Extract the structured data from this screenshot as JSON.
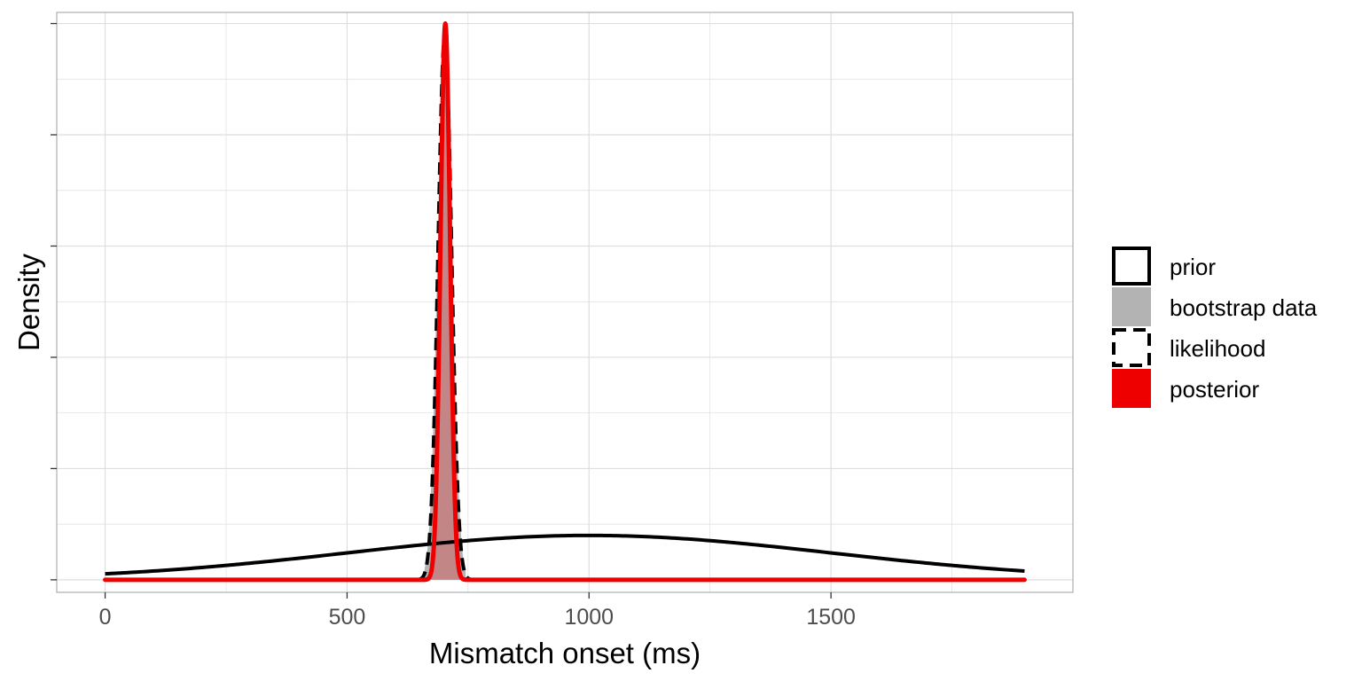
{
  "chart_data": {
    "type": "area",
    "xlabel": "Mismatch onset (ms)",
    "ylabel": "Density",
    "xlim": [
      -100,
      2000
    ],
    "ylim": [
      -0.000225,
      0.0102
    ],
    "x_ticks": [
      0,
      500,
      1000,
      1500
    ],
    "y_tick_labels": "none",
    "grid": true,
    "legend_position": "right",
    "colors": {
      "prior": "#000000",
      "bootstrap_data": "#b3b3b3",
      "likelihood": "#000000",
      "posterior": "#ee0000",
      "grid": "#dedede",
      "panel_border": "#b3b3b3"
    },
    "legend": [
      {
        "key": "prior",
        "label": "prior"
      },
      {
        "key": "bootstrap_data",
        "label": "bootstrap data"
      },
      {
        "key": "likelihood",
        "label": "likelihood"
      },
      {
        "key": "posterior",
        "label": "posterior"
      }
    ],
    "series": [
      {
        "key": "prior",
        "kind": "normal",
        "mean": 1000,
        "sd": 500,
        "x_range": [
          0,
          1900
        ],
        "style": "solid"
      },
      {
        "key": "bootstrap_data",
        "kind": "normal",
        "mean": 702,
        "sd": 15,
        "peak": 0.0098,
        "x_range": [
          660,
          745
        ],
        "style": "filled"
      },
      {
        "key": "likelihood",
        "kind": "normal",
        "mean": 702,
        "sd": 14,
        "peak": 0.0098,
        "x_range": [
          0,
          1900
        ],
        "style": "dashed"
      },
      {
        "key": "posterior",
        "kind": "normal",
        "mean": 703,
        "sd": 10,
        "peak": 0.01,
        "x_range": [
          0,
          1900
        ],
        "style": "solid"
      }
    ]
  }
}
